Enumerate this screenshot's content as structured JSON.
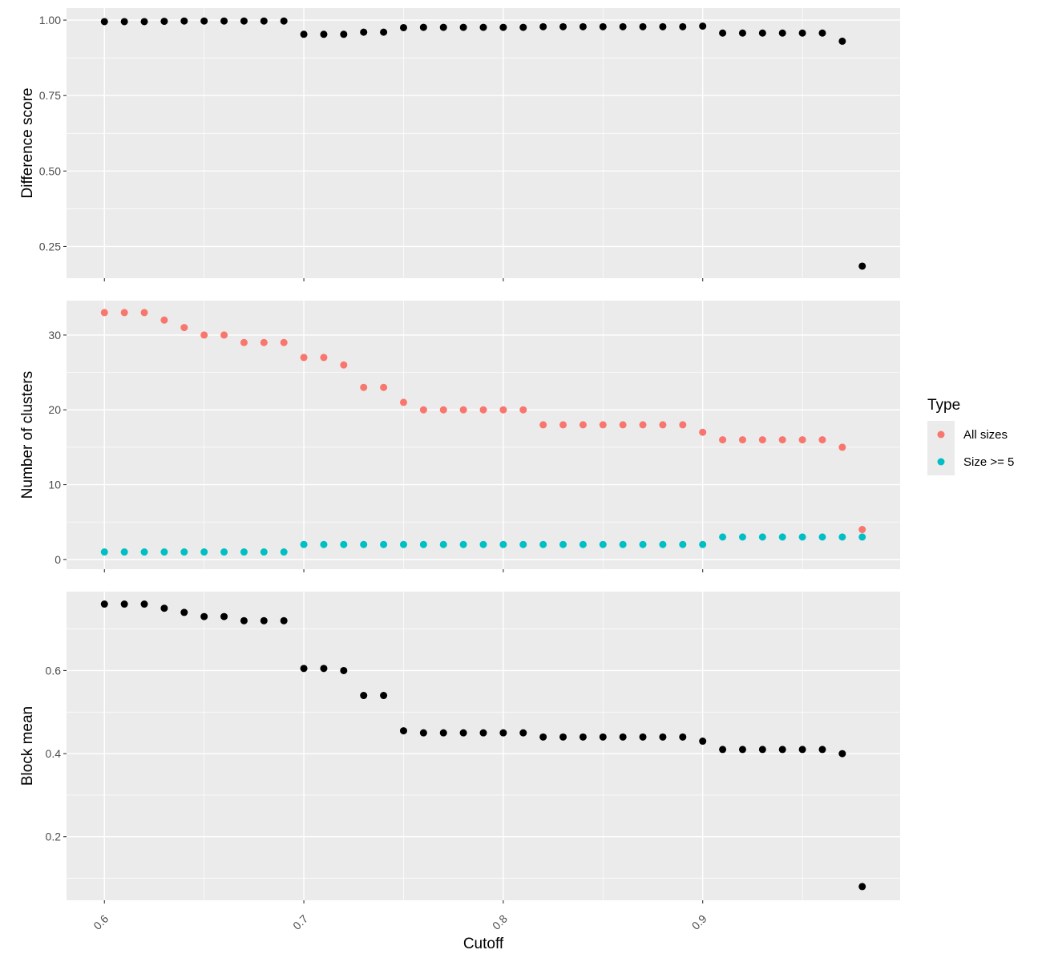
{
  "chart_data": {
    "type": "scatter",
    "xlabel": "Cutoff",
    "x_ticks": [
      "0.6",
      "0.7",
      "0.8",
      "0.9"
    ],
    "xlim": [
      0.581,
      0.999
    ],
    "panels": [
      {
        "ylabel": "Difference score",
        "ylim": [
          0.145,
          1.04
        ],
        "y_ticks": [
          "0.25",
          "0.50",
          "0.75",
          "1.00"
        ],
        "series": [
          {
            "color": "#000000",
            "x": [
              0.6,
              0.61,
              0.62,
              0.63,
              0.64,
              0.65,
              0.66,
              0.67,
              0.68,
              0.69,
              0.7,
              0.71,
              0.72,
              0.73,
              0.74,
              0.75,
              0.76,
              0.77,
              0.78,
              0.79,
              0.8,
              0.81,
              0.82,
              0.83,
              0.84,
              0.85,
              0.86,
              0.87,
              0.88,
              0.89,
              0.9,
              0.91,
              0.92,
              0.93,
              0.94,
              0.95,
              0.96,
              0.97,
              0.98
            ],
            "y": [
              0.995,
              0.995,
              0.995,
              0.996,
              0.997,
              0.997,
              0.997,
              0.997,
              0.997,
              0.997,
              0.953,
              0.953,
              0.953,
              0.96,
              0.96,
              0.975,
              0.976,
              0.976,
              0.976,
              0.976,
              0.976,
              0.976,
              0.978,
              0.978,
              0.978,
              0.978,
              0.978,
              0.978,
              0.978,
              0.978,
              0.98,
              0.957,
              0.957,
              0.957,
              0.957,
              0.957,
              0.957,
              0.93,
              0.185
            ]
          }
        ]
      },
      {
        "ylabel": "Number of clusters",
        "ylim": [
          -1.3,
          34.6
        ],
        "y_ticks": [
          "0",
          "10",
          "20",
          "30"
        ],
        "series": [
          {
            "name": "All sizes",
            "color": "#F8766D",
            "x": [
              0.6,
              0.61,
              0.62,
              0.63,
              0.64,
              0.65,
              0.66,
              0.67,
              0.68,
              0.69,
              0.7,
              0.71,
              0.72,
              0.73,
              0.74,
              0.75,
              0.76,
              0.77,
              0.78,
              0.79,
              0.8,
              0.81,
              0.82,
              0.83,
              0.84,
              0.85,
              0.86,
              0.87,
              0.88,
              0.89,
              0.9,
              0.91,
              0.92,
              0.93,
              0.94,
              0.95,
              0.96,
              0.97,
              0.98
            ],
            "y": [
              33,
              33,
              33,
              32,
              31,
              30,
              30,
              29,
              29,
              29,
              27,
              27,
              26,
              23,
              23,
              21,
              20,
              20,
              20,
              20,
              20,
              20,
              18,
              18,
              18,
              18,
              18,
              18,
              18,
              18,
              17,
              16,
              16,
              16,
              16,
              16,
              16,
              15,
              4
            ]
          },
          {
            "name": "Size >= 5",
            "color": "#00BFC4",
            "x": [
              0.6,
              0.61,
              0.62,
              0.63,
              0.64,
              0.65,
              0.66,
              0.67,
              0.68,
              0.69,
              0.7,
              0.71,
              0.72,
              0.73,
              0.74,
              0.75,
              0.76,
              0.77,
              0.78,
              0.79,
              0.8,
              0.81,
              0.82,
              0.83,
              0.84,
              0.85,
              0.86,
              0.87,
              0.88,
              0.89,
              0.9,
              0.91,
              0.92,
              0.93,
              0.94,
              0.95,
              0.96,
              0.97,
              0.98
            ],
            "y": [
              1,
              1,
              1,
              1,
              1,
              1,
              1,
              1,
              1,
              1,
              2,
              2,
              2,
              2,
              2,
              2,
              2,
              2,
              2,
              2,
              2,
              2,
              2,
              2,
              2,
              2,
              2,
              2,
              2,
              2,
              2,
              3,
              3,
              3,
              3,
              3,
              3,
              3,
              3
            ]
          }
        ]
      },
      {
        "ylabel": "Block mean",
        "ylim": [
          0.047,
          0.79
        ],
        "y_ticks": [
          "0.2",
          "0.4",
          "0.6"
        ],
        "series": [
          {
            "color": "#000000",
            "x": [
              0.6,
              0.61,
              0.62,
              0.63,
              0.64,
              0.65,
              0.66,
              0.67,
              0.68,
              0.69,
              0.7,
              0.71,
              0.72,
              0.73,
              0.74,
              0.75,
              0.76,
              0.77,
              0.78,
              0.79,
              0.8,
              0.81,
              0.82,
              0.83,
              0.84,
              0.85,
              0.86,
              0.87,
              0.88,
              0.89,
              0.9,
              0.91,
              0.92,
              0.93,
              0.94,
              0.95,
              0.96,
              0.97,
              0.98
            ],
            "y": [
              0.76,
              0.76,
              0.76,
              0.75,
              0.74,
              0.73,
              0.73,
              0.72,
              0.72,
              0.72,
              0.605,
              0.605,
              0.6,
              0.54,
              0.54,
              0.455,
              0.45,
              0.45,
              0.45,
              0.45,
              0.45,
              0.45,
              0.44,
              0.44,
              0.44,
              0.44,
              0.44,
              0.44,
              0.44,
              0.44,
              0.43,
              0.41,
              0.41,
              0.41,
              0.41,
              0.41,
              0.41,
              0.4,
              0.08
            ]
          }
        ]
      }
    ],
    "legend": {
      "title": "Type",
      "placement": "right",
      "entries": [
        {
          "label": "All sizes",
          "color": "#F8766D"
        },
        {
          "label": "Size >= 5",
          "color": "#00BFC4"
        }
      ]
    },
    "grid": true,
    "panel_background": "#EBEBEB",
    "grid_color": "#FFFFFF"
  }
}
